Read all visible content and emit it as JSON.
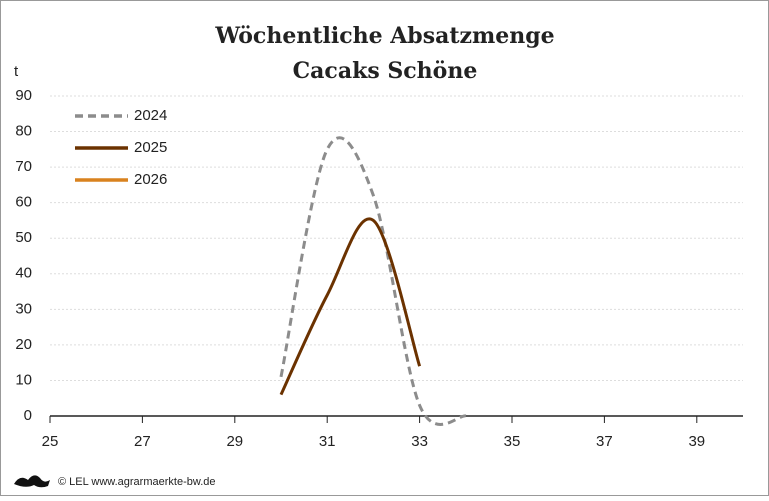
{
  "chart_data": {
    "type": "line",
    "title": "Wöchentliche Absatzmenge",
    "subtitle": "Cacaks Schöne",
    "y_label": "t",
    "source": "© LEL www.agrarmaerkte-bw.de",
    "x": [
      30,
      31,
      32,
      33,
      34
    ],
    "series": [
      {
        "name": "2024",
        "color": "#8c8c8c",
        "dashed": true,
        "values": [
          11,
          75,
          62,
          3,
          0
        ]
      },
      {
        "name": "2025",
        "color": "#6b3200",
        "dashed": false,
        "values": [
          6,
          34,
          55,
          14,
          null
        ]
      },
      {
        "name": "2026",
        "color": "#d9821e",
        "dashed": false,
        "values": [
          null,
          null,
          null,
          null,
          null
        ]
      }
    ],
    "xlim": [
      25,
      40
    ],
    "xticks": [
      25,
      27,
      29,
      31,
      33,
      35,
      37,
      39
    ],
    "ylim": [
      0,
      90
    ],
    "yticks": [
      0,
      10,
      20,
      30,
      40,
      50,
      60,
      70,
      80,
      90
    ],
    "grid": true,
    "legend": "upper left"
  }
}
